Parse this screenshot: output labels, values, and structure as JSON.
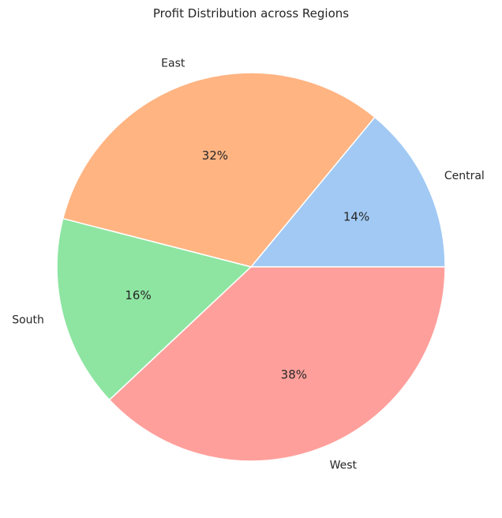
{
  "chart_data": {
    "type": "pie",
    "title": "Profit Distribution across Regions",
    "categories": [
      "Central",
      "East",
      "South",
      "West"
    ],
    "values": [
      14,
      32,
      16,
      38
    ],
    "percent_labels": [
      "14%",
      "32%",
      "16%",
      "38%"
    ],
    "colors": [
      "#a1c9f4",
      "#ffb482",
      "#8de5a1",
      "#ff9f9b"
    ],
    "start_angle_deg": 0,
    "direction": "counterclockwise",
    "edge_color": "#ffffff",
    "legend": "none"
  }
}
